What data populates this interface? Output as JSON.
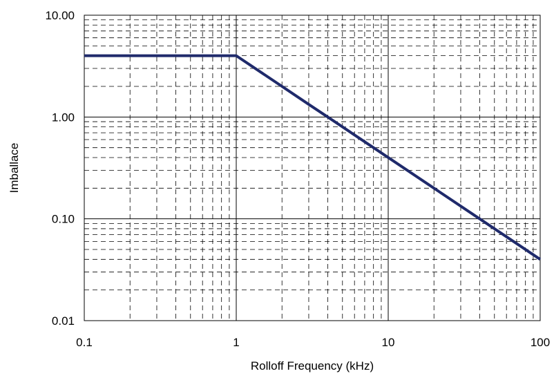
{
  "chart_data": {
    "type": "line",
    "xlabel": "Rolloff Frequency (kHz)",
    "ylabel": "Imballace",
    "xscale": "log",
    "yscale": "log",
    "xlim": [
      0.1,
      100
    ],
    "ylim": [
      0.01,
      10
    ],
    "x_ticks": [
      "0.1",
      "1",
      "10",
      "100"
    ],
    "y_ticks": [
      "10.00",
      "1.00",
      "0.10",
      "0.01"
    ],
    "grid": "major solid, minor dashed",
    "series": [
      {
        "x": [
          0.1,
          1,
          2,
          3,
          4,
          10,
          20,
          40,
          100
        ],
        "values": [
          4,
          4,
          2,
          1.33,
          1,
          0.4,
          0.2,
          0.1,
          0.04
        ]
      }
    ],
    "colors": {
      "line": "#1f2a6b",
      "grid": "#000000",
      "background": "#ffffff"
    }
  }
}
